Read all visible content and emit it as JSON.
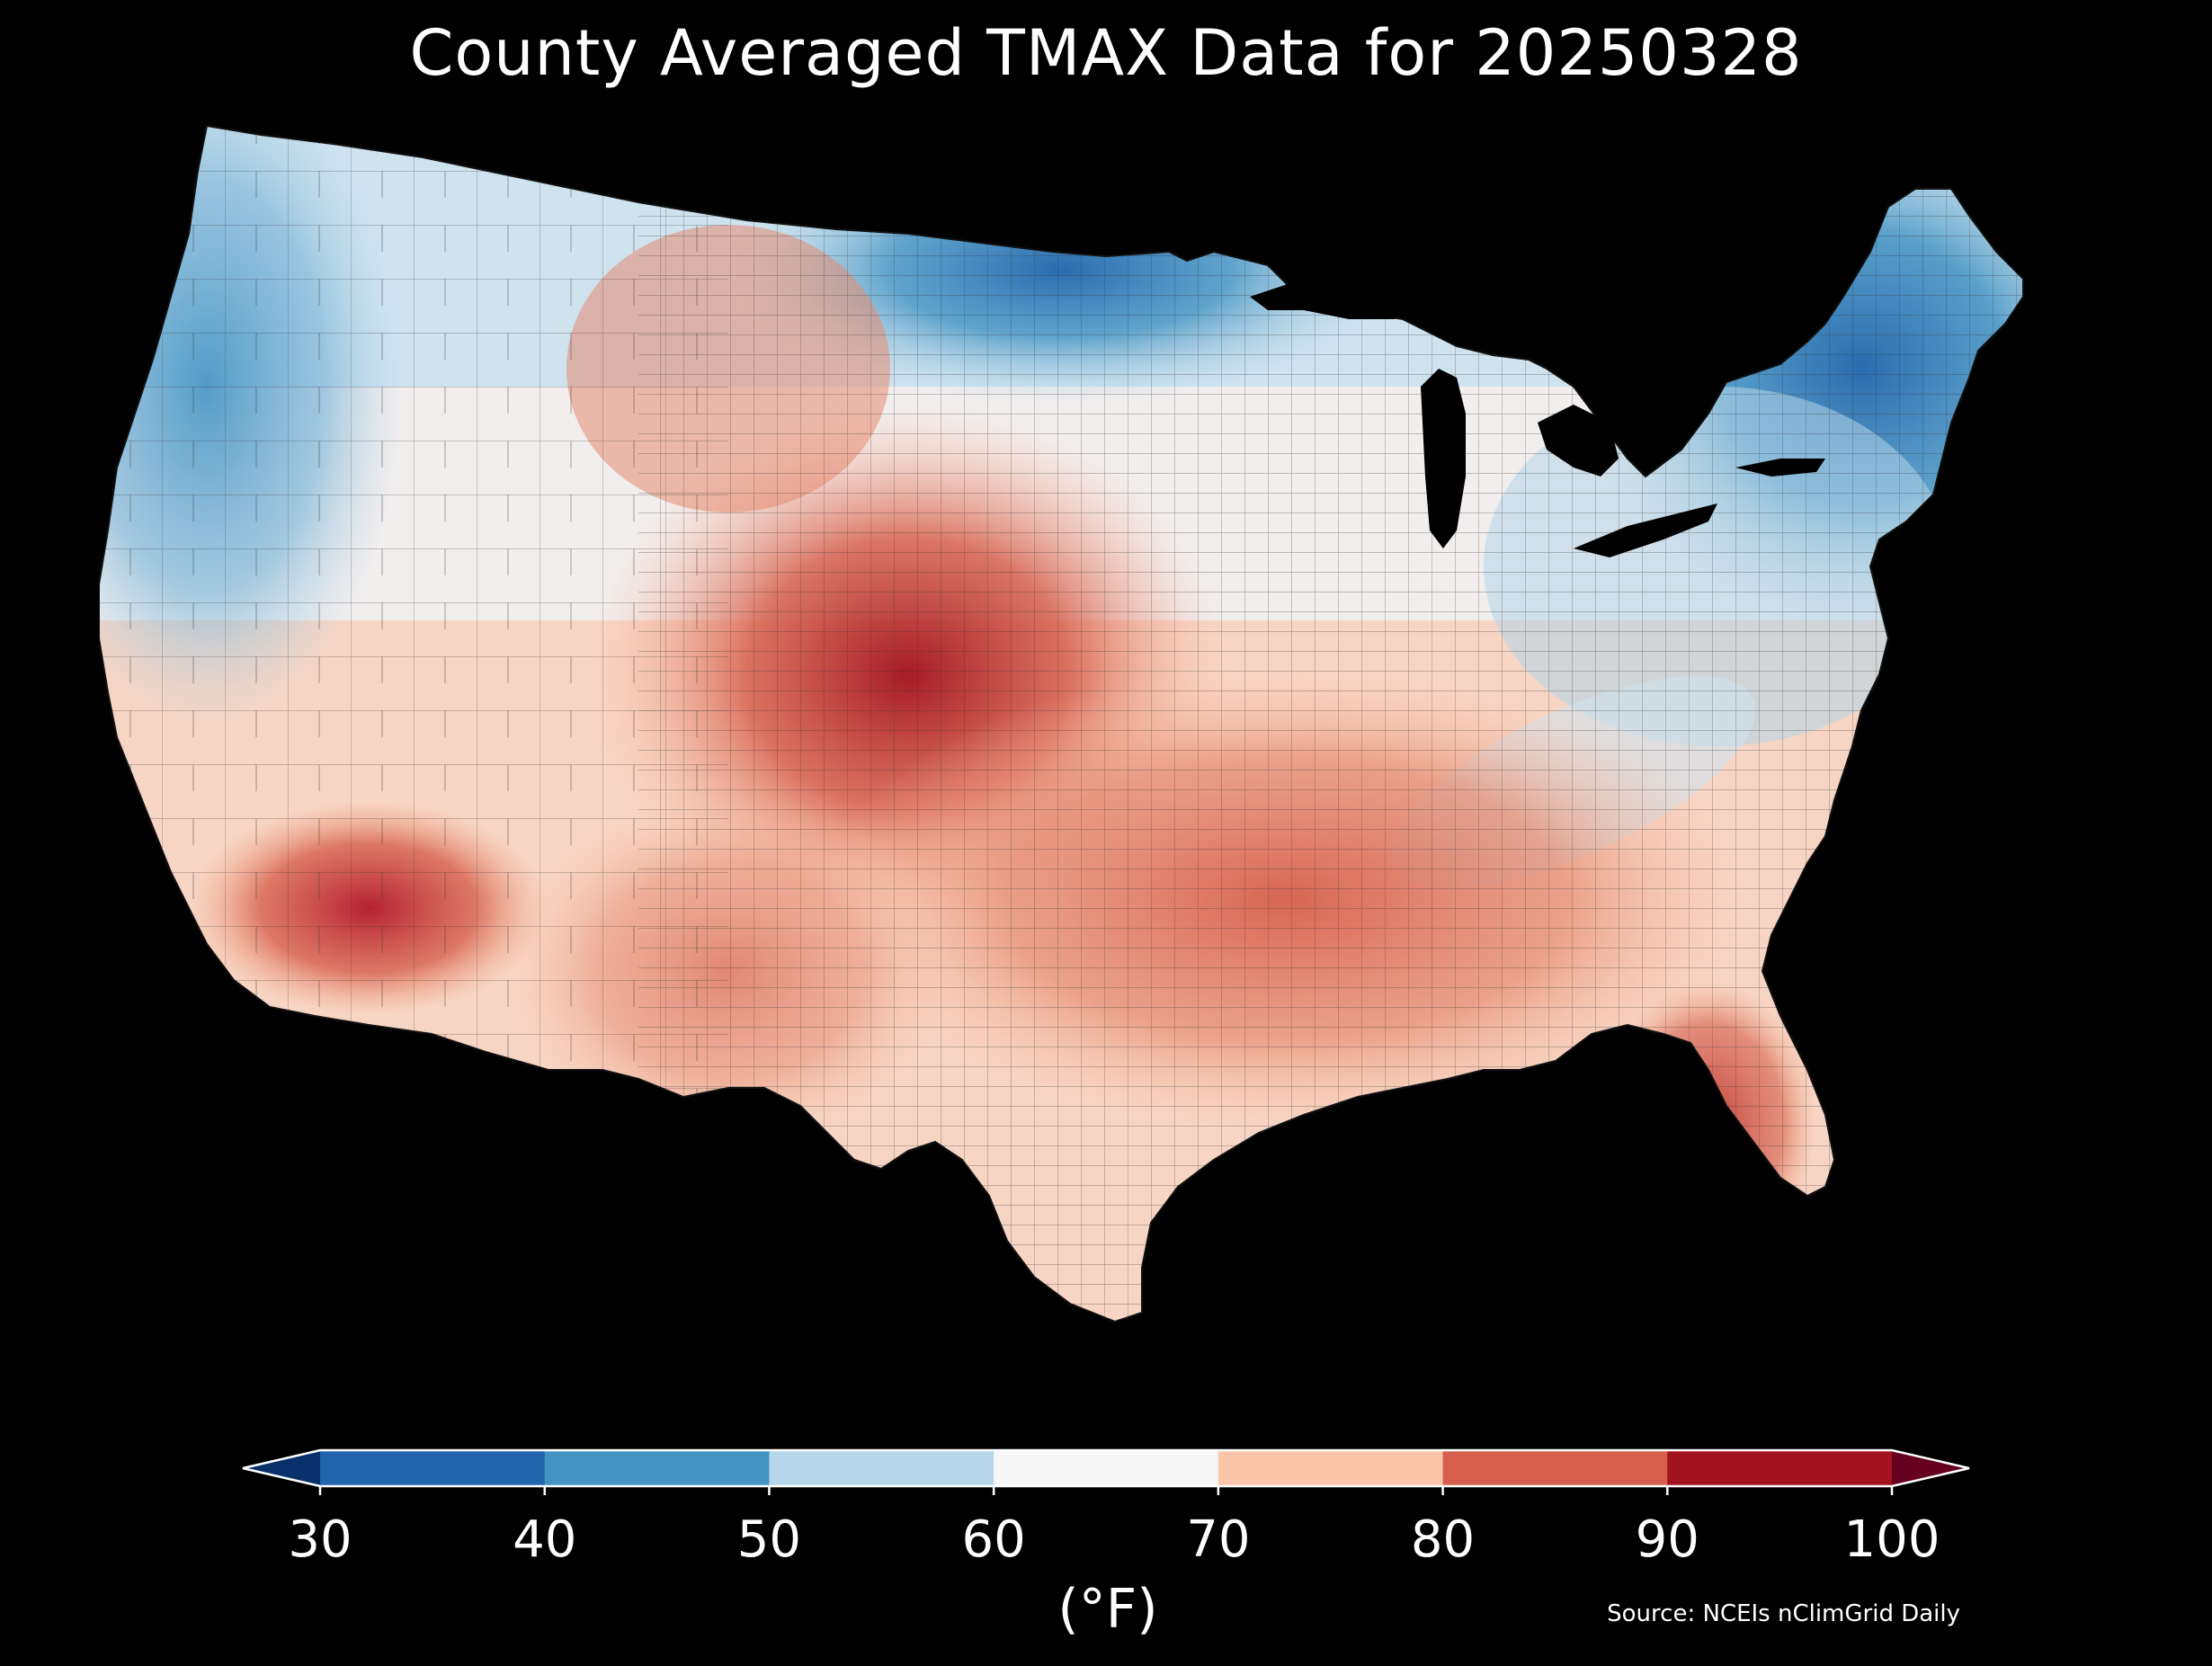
{
  "title": "County Averaged TMAX Data for 20250328",
  "colors": {
    "background": "#000000",
    "border": "#222222",
    "bins": [
      "#08306b",
      "#2166ac",
      "#4393c3",
      "#b5d6e8",
      "#f7f7f7",
      "#fbc5aa",
      "#d6604d",
      "#a2121f",
      "#67001f"
    ]
  },
  "map": {
    "name": "contiguous-united-states",
    "layer": "county-averaged-tmax"
  },
  "colorbar": {
    "boundaries": [
      30,
      40,
      50,
      60,
      70,
      80,
      90,
      100
    ],
    "tick_labels": [
      "30",
      "40",
      "50",
      "60",
      "70",
      "80",
      "90",
      "100"
    ],
    "extend": "both",
    "units_label": "(°F)"
  },
  "source": "Source: NCEIs nClimGrid Daily"
}
